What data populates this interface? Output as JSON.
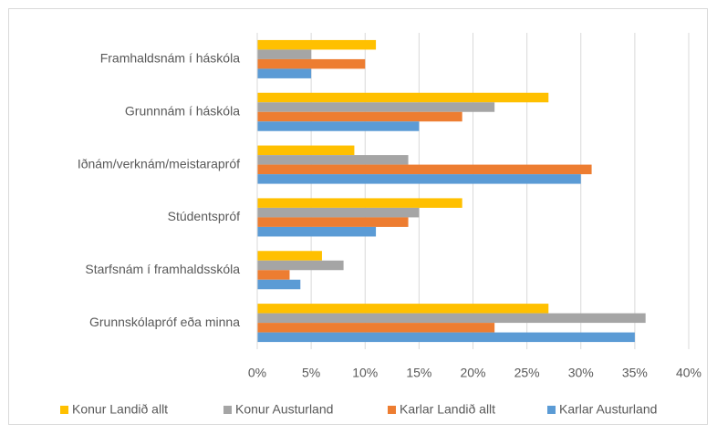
{
  "chart_data": {
    "type": "bar",
    "orientation": "horizontal",
    "categories": [
      "Framhaldsnám í háskóla",
      "Grunnnám í háskóla",
      "Iðnám/verknám/meistarapróf",
      "Stúdentspróf",
      "Starfsnám í framhaldsskóla",
      "Grunnskólapróf eða minna"
    ],
    "series": [
      {
        "name": "Konur Landið allt",
        "color": "#ffc000",
        "values": [
          11,
          27,
          9,
          19,
          6,
          27
        ]
      },
      {
        "name": "Konur Austurland",
        "color": "#a5a5a5",
        "values": [
          5,
          22,
          14,
          15,
          8,
          36
        ]
      },
      {
        "name": "Karlar Landið allt",
        "color": "#ed7d31",
        "values": [
          10,
          19,
          31,
          14,
          3,
          22
        ]
      },
      {
        "name": "Karlar Austurland",
        "color": "#5b9bd5",
        "values": [
          5,
          15,
          30,
          11,
          4,
          35
        ]
      }
    ],
    "xlim": [
      0,
      40
    ],
    "xticks": [
      {
        "value": 0,
        "label": "0%"
      },
      {
        "value": 5,
        "label": "5%"
      },
      {
        "value": 10,
        "label": "10%"
      },
      {
        "value": 15,
        "label": "15%"
      },
      {
        "value": 20,
        "label": "20%"
      },
      {
        "value": 25,
        "label": "25%"
      },
      {
        "value": 30,
        "label": "30%"
      },
      {
        "value": 35,
        "label": "35%"
      },
      {
        "value": 40,
        "label": "40%"
      }
    ],
    "grid": true,
    "legend": "bottom"
  }
}
